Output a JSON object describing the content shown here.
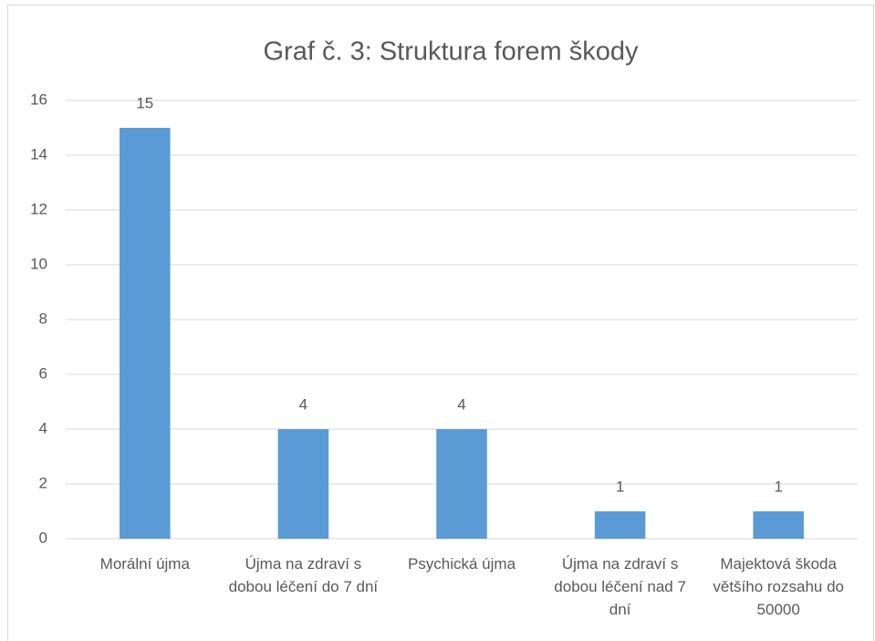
{
  "chart_data": {
    "type": "bar",
    "title": "Graf č. 3: Struktura forem škody",
    "categories": [
      "Morální újma",
      "Újma na zdraví s dobou léčení do 7 dní",
      "Psychická újma",
      "Újma na zdraví s dobou léčení nad 7 dní",
      "Majektová škoda většího rozsahu do 50000"
    ],
    "values": [
      15,
      4,
      4,
      1,
      1
    ],
    "color": "#5b9bd5",
    "ylim": [
      0,
      16
    ],
    "yticks": [
      0,
      2,
      4,
      6,
      8,
      10,
      12,
      14,
      16
    ],
    "grid": true
  }
}
